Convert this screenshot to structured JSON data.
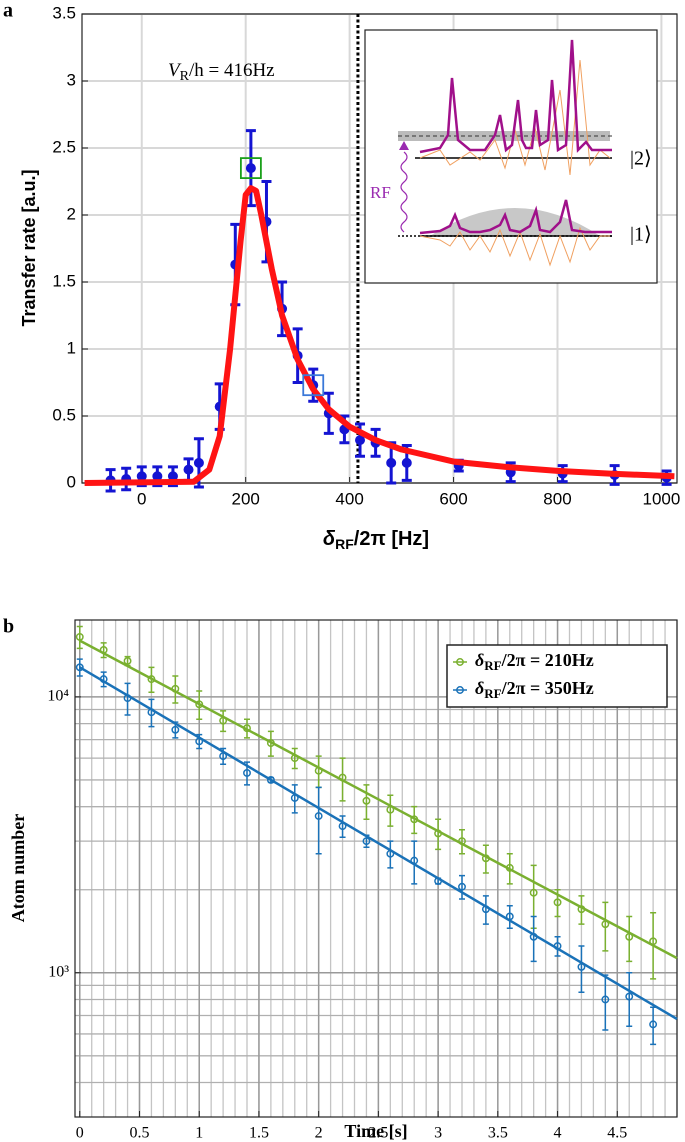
{
  "chart_data": [
    {
      "type": "scatter",
      "panel": "a",
      "ylabel": "Transfer rate [a.u.]",
      "xlabel": [
        "δ",
        "RF",
        "/2π [Hz]"
      ],
      "annotation": [
        "V",
        "R",
        "/h = 416Hz"
      ],
      "vline": 416,
      "xlim": [
        -115,
        1030
      ],
      "xticks": [
        0,
        200,
        400,
        600,
        800,
        1000
      ],
      "ylim": [
        0,
        3.5
      ],
      "yticks": [
        0,
        0.5,
        1,
        1.5,
        2,
        2.5,
        3,
        3.5
      ],
      "grid": true,
      "series": [
        {
          "style": "points",
          "color": "#1414d2",
          "x": [
            -60,
            -30,
            0,
            30,
            60,
            90,
            110,
            150,
            180,
            210,
            240,
            270,
            300,
            330,
            360,
            390,
            420,
            450,
            480,
            510,
            610,
            710,
            810,
            910,
            1010
          ],
          "values": [
            0.02,
            0.03,
            0.05,
            0.05,
            0.05,
            0.1,
            0.15,
            0.57,
            1.63,
            2.35,
            1.95,
            1.3,
            0.95,
            0.73,
            0.52,
            0.4,
            0.32,
            0.3,
            0.15,
            0.15,
            0.13,
            0.08,
            0.07,
            0.06,
            0.04
          ],
          "errors": [
            0.08,
            0.08,
            0.07,
            0.07,
            0.07,
            0.08,
            0.18,
            0.17,
            0.3,
            0.28,
            0.3,
            0.2,
            0.2,
            0.12,
            0.15,
            0.1,
            0.12,
            0.1,
            0.15,
            0.13,
            0.04,
            0.07,
            0.06,
            0.07,
            0.05
          ]
        },
        {
          "style": "line",
          "color": "#ff1414",
          "x": [
            -110,
            100,
            130,
            150,
            170,
            190,
            200,
            210,
            220,
            230,
            250,
            270,
            300,
            330,
            360,
            400,
            450,
            500,
            600,
            700,
            800,
            900,
            1025
          ],
          "values": [
            0,
            0.01,
            0.1,
            0.35,
            1.0,
            1.8,
            2.15,
            2.2,
            2.18,
            2.0,
            1.6,
            1.25,
            0.92,
            0.7,
            0.55,
            0.42,
            0.32,
            0.25,
            0.16,
            0.12,
            0.09,
            0.07,
            0.05
          ]
        }
      ],
      "highlights": [
        {
          "x": 210,
          "y": 2.35,
          "color": "#1aa01a"
        },
        {
          "x": 330,
          "y": 0.73,
          "color": "#3a78d8"
        }
      ],
      "inset": {
        "labels": [
          "|2⟩",
          "|1⟩",
          "RF"
        ]
      }
    },
    {
      "type": "scatter",
      "panel": "b",
      "ylabel": "Atom number",
      "xlabel": "Time [s]",
      "xlim": [
        -0.04,
        5.0
      ],
      "xticks": [
        0,
        0.5,
        1,
        1.5,
        2,
        2.5,
        3,
        3.5,
        4,
        4.5
      ],
      "x_minor_step": 0.1,
      "ylog": true,
      "ylim": [
        300,
        19000
      ],
      "yticks": [
        {
          "value": 1000,
          "label": "10³"
        },
        {
          "value": 10000,
          "label": "10⁴"
        }
      ],
      "grid": true,
      "minor_grid": true,
      "legend": "upper right",
      "series": [
        {
          "name": [
            "δ",
            "RF",
            "/2π = 210Hz"
          ],
          "color": "#7ab030",
          "x": [
            0,
            0.2,
            0.4,
            0.6,
            0.8,
            1.0,
            1.2,
            1.4,
            1.6,
            1.8,
            2.0,
            2.2,
            2.4,
            2.6,
            2.8,
            3.0,
            3.2,
            3.4,
            3.6,
            3.8,
            4.0,
            4.2,
            4.4,
            4.6,
            4.8
          ],
          "values": [
            16500,
            14800,
            13500,
            11600,
            10700,
            9400,
            8200,
            7700,
            6800,
            6000,
            5400,
            5100,
            4200,
            3900,
            3600,
            3200,
            3000,
            2600,
            2400,
            1950,
            1800,
            1700,
            1500,
            1350,
            1300
          ],
          "errors": [
            1500,
            900,
            500,
            1200,
            1200,
            1100,
            700,
            600,
            700,
            500,
            700,
            900,
            600,
            500,
            400,
            400,
            300,
            300,
            300,
            500,
            200,
            200,
            300,
            250,
            350
          ],
          "fit": {
            "x": [
              0,
              5.0
            ],
            "values": [
              16000,
              1130
            ]
          }
        },
        {
          "name": [
            "δ",
            "RF",
            "/2π = 350Hz"
          ],
          "color": "#1a72b8",
          "x": [
            0,
            0.2,
            0.4,
            0.6,
            0.8,
            1.0,
            1.2,
            1.4,
            1.6,
            1.8,
            2.0,
            2.2,
            2.4,
            2.6,
            2.8,
            3.0,
            3.2,
            3.4,
            3.6,
            3.8,
            4.0,
            4.2,
            4.4,
            4.6,
            4.8
          ],
          "values": [
            12800,
            11600,
            9900,
            8800,
            7600,
            6900,
            6100,
            5300,
            5000,
            4300,
            3700,
            3400,
            3000,
            2700,
            2550,
            2150,
            2050,
            1700,
            1600,
            1350,
            1250,
            1050,
            800,
            820,
            650
          ],
          "errors": [
            900,
            700,
            1300,
            1000,
            500,
            400,
            400,
            500,
            100,
            500,
            1000,
            300,
            150,
            300,
            450,
            50,
            200,
            200,
            150,
            250,
            100,
            200,
            180,
            180,
            100
          ],
          "fit": {
            "x": [
              0,
              5.0
            ],
            "values": [
              12800,
              680
            ]
          }
        }
      ]
    }
  ]
}
